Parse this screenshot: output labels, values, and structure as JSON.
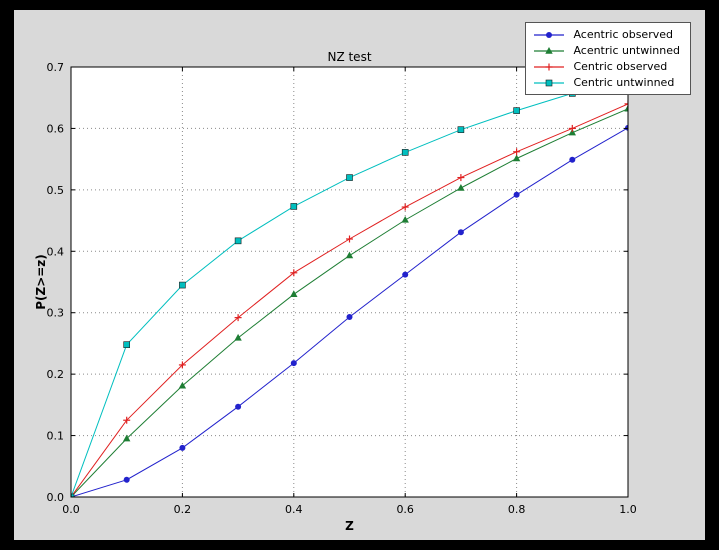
{
  "chart_data": {
    "type": "line",
    "title": "NZ test",
    "xlabel": "Z",
    "ylabel": "P(Z>=z)",
    "xlim": [
      0.0,
      1.0
    ],
    "ylim": [
      0.0,
      0.7
    ],
    "xticks": [
      0.0,
      0.2,
      0.4,
      0.6,
      0.8,
      1.0
    ],
    "yticks": [
      0.0,
      0.1,
      0.2,
      0.3,
      0.4,
      0.5,
      0.6,
      0.7
    ],
    "grid": true,
    "legend_position": "upper right",
    "x": [
      0.0,
      0.1,
      0.2,
      0.3,
      0.4,
      0.5,
      0.6,
      0.7,
      0.8,
      0.9,
      1.0
    ],
    "series": [
      {
        "name": "Acentric observed",
        "color": "#2222cc",
        "marker": "circle",
        "values": [
          0.0,
          0.028,
          0.08,
          0.147,
          0.218,
          0.293,
          0.362,
          0.431,
          0.492,
          0.549,
          0.601
        ]
      },
      {
        "name": "Acentric untwinned",
        "color": "#1e7e34",
        "marker": "triangle",
        "values": [
          0.0,
          0.095,
          0.181,
          0.259,
          0.33,
          0.393,
          0.451,
          0.503,
          0.551,
          0.593,
          0.632
        ]
      },
      {
        "name": "Centric observed",
        "color": "#e02020",
        "marker": "plus",
        "values": [
          0.0,
          0.125,
          0.215,
          0.292,
          0.365,
          0.42,
          0.472,
          0.52,
          0.562,
          0.6,
          0.64
        ]
      },
      {
        "name": "Centric untwinned",
        "color": "#00bfbf",
        "marker": "square",
        "values": [
          0.0,
          0.248,
          0.345,
          0.417,
          0.473,
          0.52,
          0.561,
          0.598,
          0.629,
          0.657,
          0.683
        ]
      }
    ]
  },
  "figure": {
    "outer_background": "#000000",
    "background": "#d9d9d9",
    "plot_background": "#ffffff",
    "grid_color": "#8a8a8a",
    "axis_color": "#000000"
  }
}
